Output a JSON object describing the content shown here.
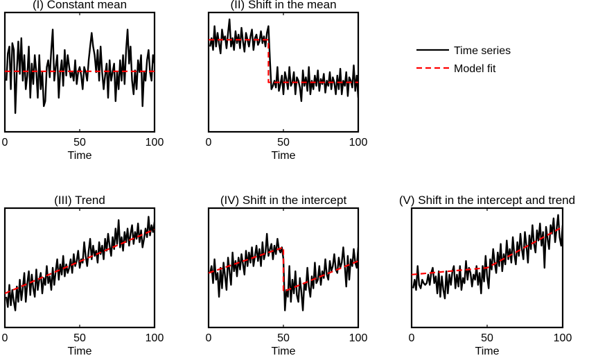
{
  "legend": {
    "series_label": "Time series",
    "fit_label": "Model fit",
    "series_color": "#000000",
    "fit_color": "#ff0000"
  },
  "chart_data": [
    {
      "type": "line",
      "title": "(I) Constant mean",
      "xlabel": "Time",
      "ylabel": "",
      "xlim": [
        0,
        100
      ],
      "xticks": [
        0,
        50,
        100
      ],
      "ylim": [
        -3,
        4
      ],
      "grid": false,
      "series": [
        {
          "name": "Time series",
          "x_start": 1,
          "x_step": 1,
          "values": [
            0.0,
            1.6,
            2.0,
            -0.5,
            2.2,
            1.8,
            -1.9,
            0.6,
            2.3,
            0.4,
            2.5,
            0.0,
            1.5,
            -0.5,
            0.3,
            2.0,
            -1.0,
            1.0,
            -0.2,
            1.5,
            0.5,
            -1.0,
            1.5,
            -0.5,
            0.5,
            -1.5,
            -1.2,
            0.8,
            1.2,
            0.2,
            1.8,
            3.0,
            0.0,
            0.8,
            1.5,
            -1.0,
            0.5,
            1.2,
            -0.3,
            1.8,
            0.3,
            1.5,
            0.8,
            0.2,
            0.5,
            0.0,
            1.2,
            -0.2,
            0.5,
            0.8,
            0.3,
            -0.5,
            0.8,
            0.5,
            0.0,
            1.2,
            2.0,
            2.8,
            2.0,
            1.5,
            0.5,
            1.8,
            0.0,
            2.0,
            0.5,
            -0.5,
            0.3,
            1.0,
            -1.0,
            1.2,
            0.0,
            0.5,
            1.0,
            -1.2,
            0.5,
            -0.5,
            1.2,
            0.0,
            1.5,
            -0.2,
            1.8,
            3.0,
            1.0,
            2.0,
            0.0,
            -0.8,
            0.6,
            -0.5,
            1.2,
            0.5,
            1.5,
            -1.5,
            0.5,
            0.0,
            1.2,
            1.8,
            0.5,
            0.0,
            1.5,
            1.0
          ]
        },
        {
          "name": "Model fit",
          "x": [
            0,
            100
          ],
          "values": [
            0.55,
            0.55
          ]
        }
      ]
    },
    {
      "type": "line",
      "title": "(II) Shift in the mean",
      "xlabel": "Time",
      "ylabel": "",
      "xlim": [
        0,
        100
      ],
      "xticks": [
        0,
        50,
        100
      ],
      "ylim": [
        -3,
        4
      ],
      "grid": false,
      "series": [
        {
          "name": "Time series",
          "x_start": 1,
          "x_step": 1,
          "values": [
            2.0,
            2.5,
            1.8,
            3.2,
            2.0,
            2.8,
            2.2,
            1.6,
            3.0,
            2.4,
            2.6,
            1.9,
            2.8,
            3.6,
            2.0,
            2.5,
            1.8,
            2.9,
            2.2,
            2.7,
            1.9,
            3.1,
            2.3,
            1.7,
            2.8,
            2.4,
            2.0,
            2.6,
            3.0,
            1.8,
            2.5,
            2.7,
            2.1,
            2.3,
            2.9,
            2.2,
            2.6,
            2.0,
            2.8,
            3.2,
            1.2,
            -0.5,
            -0.3,
            0.0,
            -0.4,
            0.8,
            -0.6,
            -0.2,
            0.3,
            -0.8,
            0.5,
            0.1,
            -0.5,
            0.8,
            -0.3,
            -0.1,
            0.5,
            -0.8,
            0.2,
            0.0,
            -0.4,
            -1.2,
            0.6,
            -0.3,
            0.2,
            -0.6,
            0.8,
            -0.8,
            0.0,
            -0.5,
            0.3,
            -0.3,
            0.6,
            -0.6,
            0.1,
            -0.2,
            0.4,
            -0.7,
            0.0,
            -0.3,
            0.5,
            -0.5,
            0.2,
            -0.1,
            -0.8,
            0.3,
            -0.5,
            0.7,
            -0.8,
            0.0,
            -0.3,
            0.5,
            -0.9,
            0.2,
            0.0,
            -0.4,
            0.9,
            -0.6,
            0.3,
            -1.0
          ]
        },
        {
          "name": "Model fit",
          "x": [
            0,
            40,
            40,
            100
          ],
          "values": [
            2.4,
            2.4,
            -0.1,
            -0.1
          ]
        }
      ]
    },
    {
      "type": "line",
      "title": "(III) Trend",
      "xlabel": "Time",
      "ylabel": "",
      "xlim": [
        0,
        100
      ],
      "xticks": [
        0,
        50,
        100
      ],
      "ylim": [
        -1,
        6
      ],
      "grid": false,
      "series": [
        {
          "name": "Time series",
          "x_start": 1,
          "x_step": 1,
          "values": [
            0.8,
            0.2,
            1.5,
            0.3,
            1.2,
            0.5,
            0.0,
            1.4,
            0.5,
            1.8,
            0.6,
            1.3,
            2.2,
            0.5,
            1.6,
            2.3,
            0.9,
            2.1,
            1.3,
            0.8,
            2.4,
            1.2,
            1.8,
            2.2,
            1.0,
            1.9,
            1.5,
            2.6,
            1.6,
            2.0,
            1.2,
            2.5,
            1.5,
            2.3,
            3.0,
            1.8,
            2.7,
            2.1,
            3.2,
            2.0,
            2.7,
            2.2,
            2.5,
            3.0,
            2.2,
            3.3,
            2.6,
            2.9,
            3.5,
            2.5,
            3.0,
            2.8,
            4.0,
            3.2,
            2.6,
            3.5,
            4.2,
            3.0,
            3.8,
            3.2,
            3.5,
            2.8,
            4.0,
            3.3,
            3.8,
            3.0,
            4.2,
            3.5,
            4.5,
            3.8,
            3.2,
            4.3,
            3.6,
            4.8,
            3.9,
            5.3,
            3.7,
            4.3,
            3.5,
            4.6,
            4.0,
            4.8,
            3.8,
            4.5,
            5.0,
            3.9,
            4.6,
            4.2,
            5.1,
            4.0,
            4.7,
            3.7,
            4.2,
            4.8,
            4.3,
            5.5,
            4.4,
            5.0,
            4.6,
            5.2
          ]
        },
        {
          "name": "Model fit",
          "x": [
            0,
            100
          ],
          "values": [
            1.0,
            4.75
          ]
        }
      ]
    },
    {
      "type": "line",
      "title": "(IV) Shift in the intercept",
      "xlabel": "Time",
      "ylabel": "",
      "xlim": [
        0,
        100
      ],
      "xticks": [
        0,
        50,
        100
      ],
      "ylim": [
        -1,
        6
      ],
      "grid": false,
      "series": [
        {
          "name": "Time series",
          "x_start": 1,
          "x_step": 1,
          "values": [
            2.2,
            2.6,
            1.6,
            3.0,
            1.8,
            2.2,
            0.8,
            2.5,
            1.3,
            2.8,
            2.0,
            1.2,
            3.1,
            2.3,
            1.5,
            3.4,
            2.3,
            2.9,
            2.0,
            3.1,
            2.4,
            3.3,
            2.7,
            2.1,
            3.5,
            2.6,
            3.4,
            2.8,
            3.7,
            2.6,
            3.2,
            3.8,
            2.9,
            3.6,
            2.6,
            4.0,
            3.0,
            3.4,
            4.5,
            3.2,
            3.6,
            3.9,
            3.0,
            3.8,
            3.3,
            4.2,
            3.6,
            3.4,
            3.7,
            3.0,
            0.0,
            1.2,
            0.8,
            2.6,
            0.5,
            1.8,
            1.0,
            2.3,
            0.9,
            0.5,
            1.9,
            1.1,
            0.0,
            1.6,
            1.2,
            2.5,
            1.4,
            0.8,
            2.0,
            1.3,
            2.8,
            1.6,
            1.8,
            2.6,
            1.5,
            2.3,
            1.9,
            3.0,
            2.1,
            1.8,
            2.9,
            2.3,
            2.6,
            3.3,
            2.4,
            2.2,
            3.1,
            2.5,
            2.8,
            3.7,
            2.6,
            1.4,
            3.2,
            1.8,
            3.0,
            2.6,
            3.6,
            2.8,
            2.5,
            3.7
          ]
        },
        {
          "name": "Model fit",
          "x": [
            0,
            50,
            50,
            100
          ],
          "values": [
            2.2,
            3.7,
            1.1,
            2.9
          ]
        }
      ]
    },
    {
      "type": "line",
      "title": "(V) Shift in the intercept and trend",
      "xlabel": "Time",
      "ylabel": "",
      "xlim": [
        0,
        100
      ],
      "xticks": [
        0,
        50,
        100
      ],
      "ylim": [
        -1,
        6
      ],
      "grid": false,
      "series": [
        {
          "name": "Time series",
          "x_start": 1,
          "x_step": 1,
          "values": [
            1.3,
            1.8,
            1.2,
            2.6,
            1.5,
            1.3,
            1.8,
            1.6,
            1.5,
            1.6,
            2.1,
            1.5,
            2.2,
            2.5,
            1.6,
            2.0,
            1.0,
            2.3,
            0.8,
            2.0,
            1.2,
            0.7,
            2.3,
            1.0,
            2.1,
            1.5,
            2.3,
            2.6,
            1.3,
            2.1,
            1.4,
            2.6,
            1.2,
            1.9,
            1.6,
            2.9,
            1.8,
            2.5,
            2.2,
            1.4,
            2.1,
            1.8,
            2.6,
            1.5,
            2.2,
            1.0,
            2.6,
            1.7,
            3.2,
            2.0,
            1.3,
            3.0,
            2.4,
            3.6,
            2.8,
            2.2,
            3.4,
            2.6,
            3.9,
            2.3,
            3.3,
            2.7,
            4.1,
            3.0,
            3.6,
            2.8,
            4.3,
            3.3,
            2.7,
            4.0,
            3.2,
            4.5,
            3.6,
            3.0,
            4.6,
            3.8,
            2.8,
            4.4,
            3.6,
            5.0,
            3.9,
            3.4,
            4.7,
            4.1,
            5.1,
            3.8,
            4.6,
            2.5,
            4.9,
            4.2,
            3.6,
            5.0,
            4.5,
            5.4,
            4.0,
            4.8,
            5.6,
            4.3,
            3.8,
            5.0
          ]
        },
        {
          "name": "Model fit",
          "x": [
            0,
            50,
            100
          ],
          "values": [
            2.1,
            2.5,
            4.9
          ]
        }
      ]
    }
  ]
}
